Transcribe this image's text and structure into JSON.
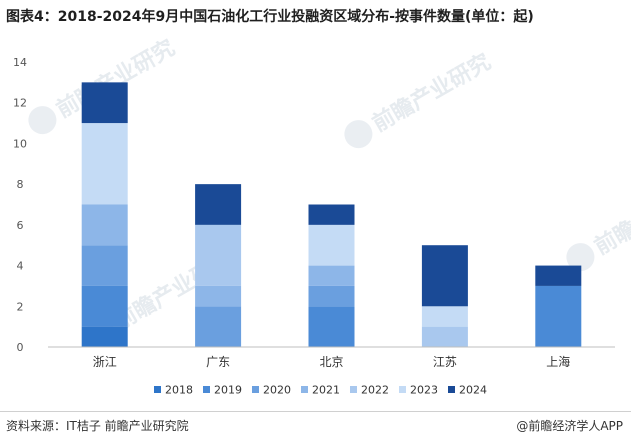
{
  "header": {
    "title": "图表4：2018-2024年9月中国石油化工行业投融资区域分布-按事件数量(单位：起)"
  },
  "chart_data": {
    "type": "bar",
    "stacked": true,
    "title": "图表4：2018-2024年9月中国石油化工行业投融资区域分布-按事件数量(单位：起)",
    "xlabel": "",
    "ylabel": "",
    "ylim": [
      0,
      14
    ],
    "yticks": [
      0,
      2,
      4,
      6,
      8,
      10,
      12,
      14
    ],
    "grid": false,
    "legend_position": "bottom",
    "categories": [
      "浙江",
      "广东",
      "北京",
      "江苏",
      "上海"
    ],
    "series": [
      {
        "name": "2018",
        "color": "#2e75c9",
        "values": [
          1,
          0,
          0,
          0,
          0
        ]
      },
      {
        "name": "2019",
        "color": "#4a8ad6",
        "values": [
          2,
          0,
          2,
          0,
          3
        ]
      },
      {
        "name": "2020",
        "color": "#6a9fdf",
        "values": [
          2,
          2,
          1,
          0,
          0
        ]
      },
      {
        "name": "2021",
        "color": "#8db6e8",
        "values": [
          2,
          1,
          1,
          0,
          0
        ]
      },
      {
        "name": "2022",
        "color": "#a9c8ee",
        "values": [
          0,
          3,
          0,
          1,
          0
        ]
      },
      {
        "name": "2023",
        "color": "#c4dbf5",
        "values": [
          4,
          0,
          2,
          1,
          0
        ]
      },
      {
        "name": "2024",
        "color": "#1a4a96",
        "values": [
          2,
          2,
          1,
          3,
          1
        ]
      }
    ]
  },
  "watermark": {
    "text": "前瞻产业研究"
  },
  "footer": {
    "source": "资料来源：IT桔子 前瞻产业研究院",
    "brand": "@前瞻经济学人APP"
  }
}
